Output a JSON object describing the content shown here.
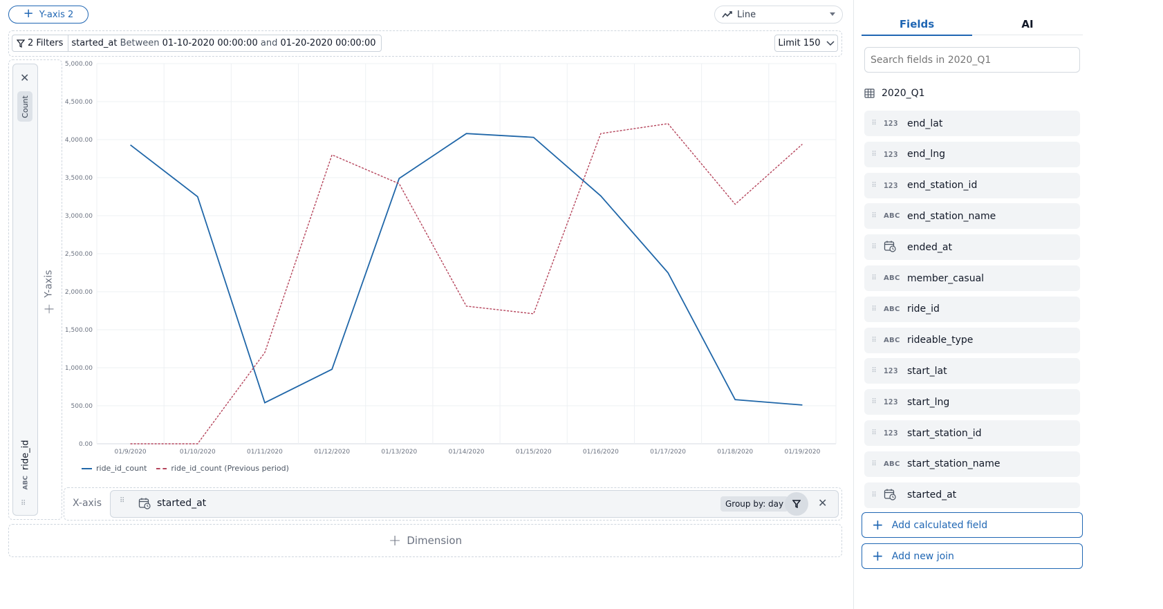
{
  "toolbar": {
    "add_y_axis_label": "Y-axis 2",
    "chart_type": "Line"
  },
  "filters": {
    "count_label": "2 Filters",
    "field": "started_at",
    "operator": "Between",
    "from": "01-10-2020 00:00:00",
    "joiner": "and",
    "to": "01-20-2020 00:00:00",
    "limit_label": "Limit 150"
  },
  "y_axis": {
    "zone_label": "Y-axis",
    "aggregation": "Count",
    "field": "ride_id",
    "field_type": "ABC"
  },
  "x_axis": {
    "zone_label": "X-axis",
    "field": "started_at",
    "group_by": "Group by: day"
  },
  "dimension": {
    "label": "Dimension"
  },
  "chart_data": {
    "type": "line",
    "categories": [
      "01/9/2020",
      "01/10/2020",
      "01/11/2020",
      "01/12/2020",
      "01/13/2020",
      "01/14/2020",
      "01/15/2020",
      "01/16/2020",
      "01/17/2020",
      "01/18/2020",
      "01/19/2020"
    ],
    "series": [
      {
        "name": "ride_id_count",
        "color": "#1f66a8",
        "style": "solid",
        "values": [
          3930,
          3250,
          540,
          980,
          3490,
          4080,
          4030,
          3260,
          2250,
          580,
          510
        ]
      },
      {
        "name": "ride_id_count (Previous period)",
        "color": "#b5445b",
        "style": "dashed",
        "values": [
          0,
          0,
          1200,
          3800,
          3420,
          1810,
          1710,
          4080,
          4210,
          3150,
          3940
        ]
      }
    ],
    "yticks": [
      "0.00",
      "500.00",
      "1,000.00",
      "1,500.00",
      "2,000.00",
      "2,500.00",
      "3,000.00",
      "3,500.00",
      "4,000.00",
      "4,500.00",
      "5,000.00"
    ],
    "ylim": [
      0,
      5000
    ],
    "grid": true,
    "legend_position": "bottom-left"
  },
  "panel": {
    "tabs": [
      "Fields",
      "AI"
    ],
    "search_placeholder": "Search fields in 2020_Q1",
    "table_name": "2020_Q1",
    "fields": [
      {
        "name": "end_lat",
        "type": "123"
      },
      {
        "name": "end_lng",
        "type": "123"
      },
      {
        "name": "end_station_id",
        "type": "123"
      },
      {
        "name": "end_station_name",
        "type": "ABC"
      },
      {
        "name": "ended_at",
        "type": "date"
      },
      {
        "name": "member_casual",
        "type": "ABC"
      },
      {
        "name": "ride_id",
        "type": "ABC"
      },
      {
        "name": "rideable_type",
        "type": "ABC"
      },
      {
        "name": "start_lat",
        "type": "123"
      },
      {
        "name": "start_lng",
        "type": "123"
      },
      {
        "name": "start_station_id",
        "type": "123"
      },
      {
        "name": "start_station_name",
        "type": "ABC"
      },
      {
        "name": "started_at",
        "type": "date"
      }
    ],
    "add_calculated_field": "Add calculated field",
    "add_new_join": "Add new join"
  }
}
